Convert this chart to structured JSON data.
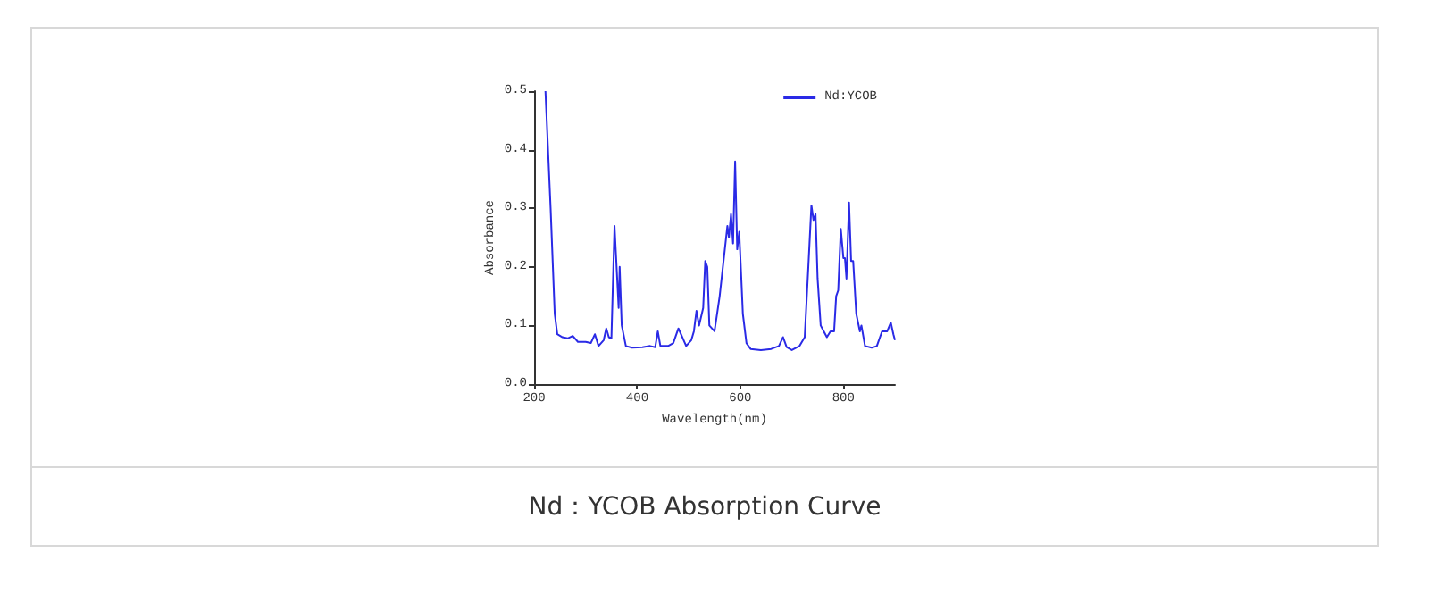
{
  "chart_data": {
    "type": "line",
    "xlabel": "Wavelength(nm)",
    "ylabel": "Absorbance",
    "annotations": [
      "Nd：YCOB Absorption Curve"
    ],
    "legend": "top right",
    "grid": false,
    "marker": "none",
    "line_style": "solid",
    "xlim": [
      200,
      900
    ],
    "xticks": [
      200,
      400,
      600,
      800
    ],
    "ylim": [
      0,
      0.5
    ],
    "yticks": [
      {
        "value": 0,
        "label": "0.0"
      },
      0.1,
      0.2,
      0.3,
      0.4,
      0.5
    ],
    "series": [
      {
        "name": "Nd:YCOB",
        "color": "#2a2ae6",
        "x": [
          222,
          232,
          240,
          245,
          255,
          265,
          275,
          285,
          300,
          310,
          318,
          325,
          335,
          340,
          345,
          350,
          356,
          360,
          364,
          366,
          370,
          378,
          390,
          410,
          425,
          435,
          440,
          445,
          460,
          470,
          480,
          485,
          495,
          505,
          510,
          515,
          520,
          528,
          532,
          536,
          540,
          550,
          560,
          570,
          575,
          578,
          582,
          586,
          590,
          594,
          598,
          605,
          612,
          620,
          640,
          660,
          675,
          683,
          690,
          700,
          715,
          725,
          732,
          738,
          742,
          746,
          750,
          756,
          762,
          768,
          775,
          782,
          786,
          790,
          795,
          800,
          803,
          806,
          811,
          815,
          819,
          825,
          832,
          835,
          842,
          855,
          865,
          875,
          885,
          892,
          897,
          900
        ],
        "values": [
          0.5,
          0.3,
          0.12,
          0.085,
          0.08,
          0.078,
          0.082,
          0.072,
          0.072,
          0.07,
          0.085,
          0.065,
          0.075,
          0.095,
          0.08,
          0.078,
          0.27,
          0.2,
          0.13,
          0.2,
          0.1,
          0.065,
          0.062,
          0.063,
          0.065,
          0.063,
          0.09,
          0.065,
          0.065,
          0.07,
          0.095,
          0.085,
          0.065,
          0.075,
          0.09,
          0.125,
          0.1,
          0.13,
          0.21,
          0.2,
          0.1,
          0.09,
          0.15,
          0.23,
          0.27,
          0.25,
          0.29,
          0.24,
          0.38,
          0.23,
          0.26,
          0.12,
          0.07,
          0.06,
          0.058,
          0.06,
          0.065,
          0.08,
          0.063,
          0.058,
          0.065,
          0.08,
          0.2,
          0.305,
          0.28,
          0.29,
          0.18,
          0.1,
          0.09,
          0.08,
          0.09,
          0.09,
          0.15,
          0.16,
          0.265,
          0.215,
          0.215,
          0.18,
          0.31,
          0.21,
          0.21,
          0.12,
          0.09,
          0.1,
          0.065,
          0.062,
          0.065,
          0.09,
          0.09,
          0.105,
          0.085,
          0.075
        ]
      }
    ]
  }
}
